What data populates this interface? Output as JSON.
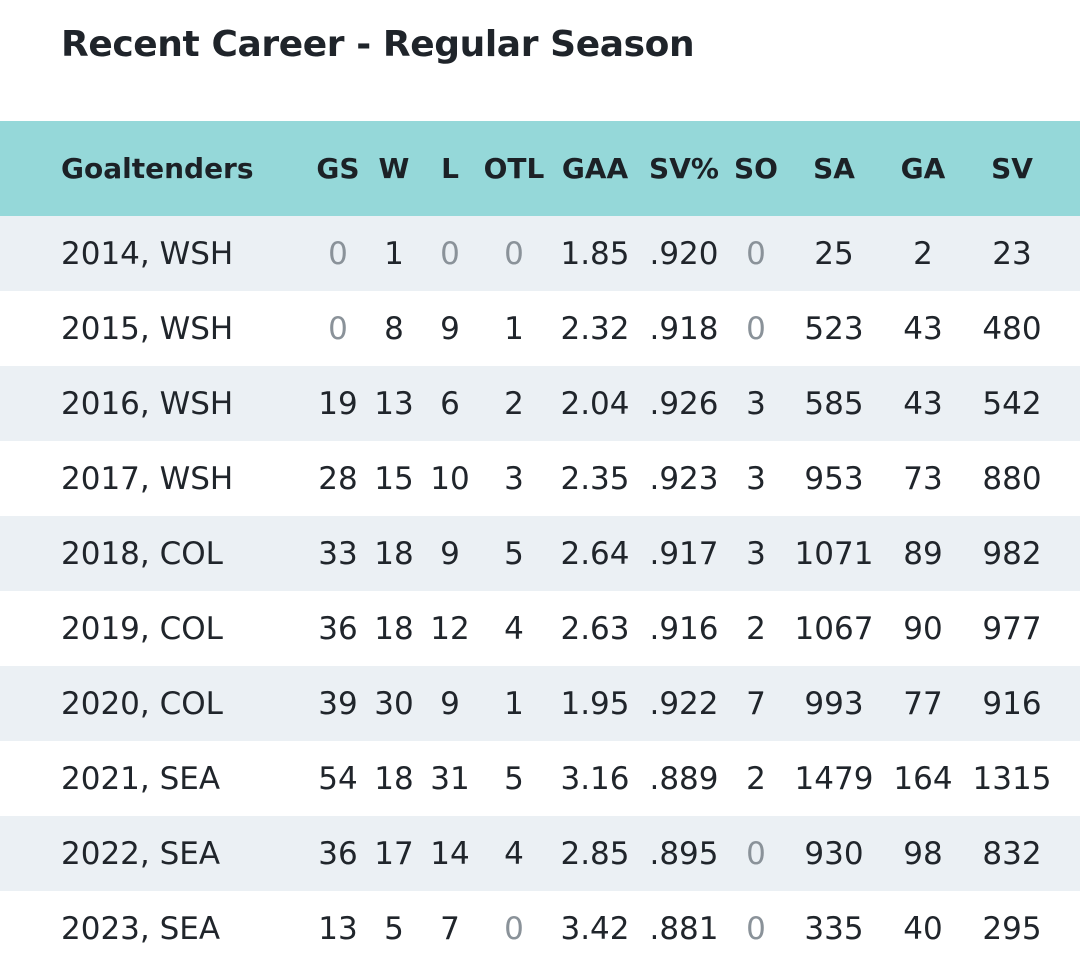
{
  "title": "Recent Career - Regular Season",
  "columns": [
    "Goaltenders",
    "GS",
    "W",
    "L",
    "OTL",
    "GAA",
    "SV%",
    "SO",
    "SA",
    "GA",
    "SV"
  ],
  "rows": [
    [
      "2014, WSH",
      "0",
      "1",
      "0",
      "0",
      "1.85",
      ".920",
      "0",
      "25",
      "2",
      "23"
    ],
    [
      "2015, WSH",
      "0",
      "8",
      "9",
      "1",
      "2.32",
      ".918",
      "0",
      "523",
      "43",
      "480"
    ],
    [
      "2016, WSH",
      "19",
      "13",
      "6",
      "2",
      "2.04",
      ".926",
      "3",
      "585",
      "43",
      "542"
    ],
    [
      "2017, WSH",
      "28",
      "15",
      "10",
      "3",
      "2.35",
      ".923",
      "3",
      "953",
      "73",
      "880"
    ],
    [
      "2018, COL",
      "33",
      "18",
      "9",
      "5",
      "2.64",
      ".917",
      "3",
      "1071",
      "89",
      "982"
    ],
    [
      "2019, COL",
      "36",
      "18",
      "12",
      "4",
      "2.63",
      ".916",
      "2",
      "1067",
      "90",
      "977"
    ],
    [
      "2020, COL",
      "39",
      "30",
      "9",
      "1",
      "1.95",
      ".922",
      "7",
      "993",
      "77",
      "916"
    ],
    [
      "2021, SEA",
      "54",
      "18",
      "31",
      "5",
      "3.16",
      ".889",
      "2",
      "1479",
      "164",
      "1315"
    ],
    [
      "2022, SEA",
      "36",
      "17",
      "14",
      "4",
      "2.85",
      ".895",
      "0",
      "930",
      "98",
      "832"
    ],
    [
      "2023, SEA",
      "13",
      "5",
      "7",
      "0",
      "3.42",
      ".881",
      "0",
      "335",
      "40",
      "295"
    ]
  ],
  "colors": {
    "header_bg": "#95d8d9",
    "row_shade": "#ebf0f4",
    "row_plain": "#ffffff",
    "zero_value": "#8a9299"
  }
}
